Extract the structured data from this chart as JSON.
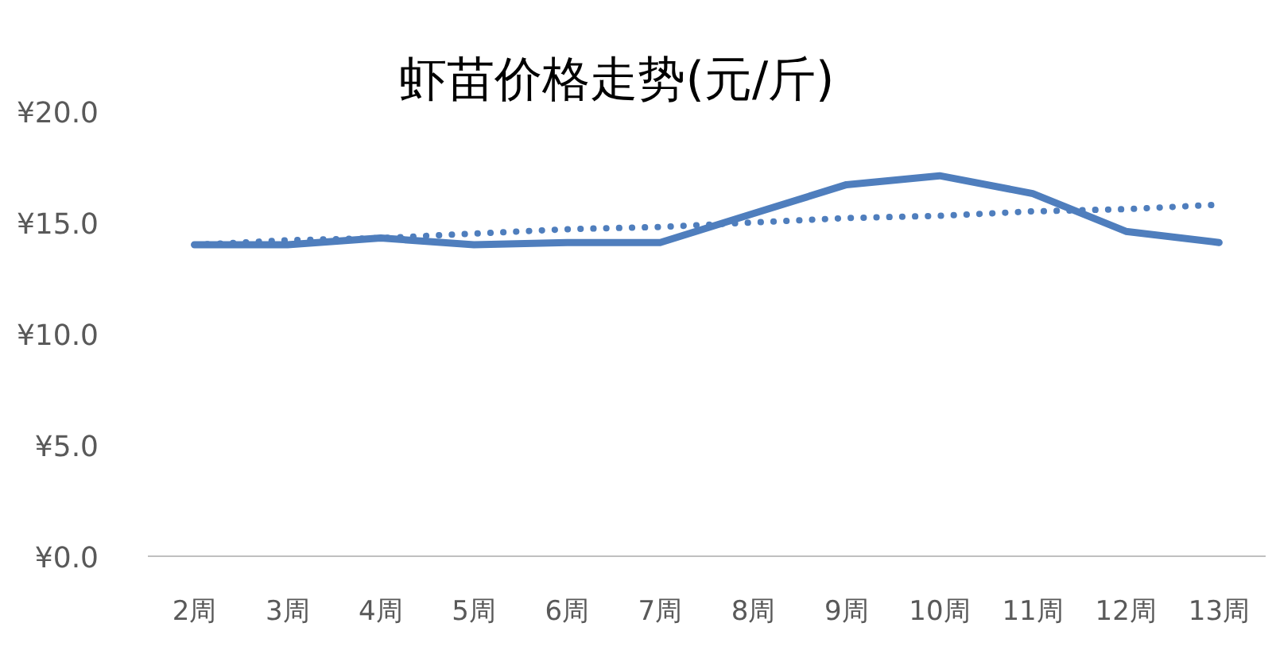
{
  "chart_data": {
    "type": "line",
    "title": "虾苗价格走势(元/斤)",
    "categories": [
      "2周",
      "3周",
      "4周",
      "5周",
      "6周",
      "7周",
      "8周",
      "9周",
      "10周",
      "11周",
      "12周",
      "13周"
    ],
    "series": [
      {
        "color": "#4f7ebd",
        "line_style": "solid",
        "values": [
          14.0,
          14.0,
          14.3,
          14.0,
          14.1,
          14.1,
          15.4,
          16.7,
          17.1,
          16.3,
          14.6,
          14.1
        ]
      },
      {
        "color": "#4f7ebd",
        "line_style": "dotted",
        "values": [
          14.0,
          14.2,
          14.3,
          14.5,
          14.7,
          14.8,
          15.0,
          15.2,
          15.3,
          15.5,
          15.6,
          15.8
        ]
      }
    ],
    "ylim": [
      0,
      20
    ],
    "yticks": [
      {
        "value": 0,
        "label": "¥0.0"
      },
      {
        "value": 5,
        "label": "¥5.0"
      },
      {
        "value": 10,
        "label": "¥10.0"
      },
      {
        "value": 15,
        "label": "¥15.0"
      },
      {
        "value": 20,
        "label": "¥20.0"
      }
    ],
    "grid": false,
    "marker": "none"
  }
}
